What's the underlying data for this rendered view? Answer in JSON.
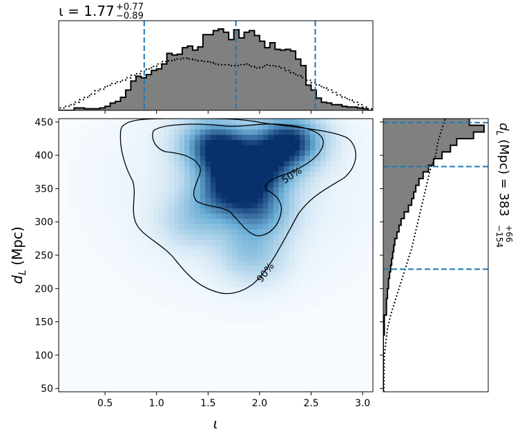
{
  "chart_data": [
    {
      "panel": "top-marginal",
      "type": "histogram-step",
      "title": "ι = 1.77 +0.77/−0.89",
      "title_main": "ι = 1.77",
      "title_up": "+0.77",
      "title_down": "−0.89",
      "xlim": [
        0.05,
        3.1
      ],
      "bin_edges_x": [
        0.05,
        3.1
      ],
      "posterior_heights": [
        0.0,
        0.0,
        0.0,
        0.03,
        0.03,
        0.02,
        0.02,
        0.02,
        0.03,
        0.05,
        0.09,
        0.11,
        0.16,
        0.25,
        0.36,
        0.42,
        0.4,
        0.44,
        0.49,
        0.51,
        0.57,
        0.7,
        0.68,
        0.69,
        0.77,
        0.79,
        0.74,
        0.78,
        0.93,
        0.93,
        0.98,
        1.0,
        0.96,
        0.87,
        0.99,
        0.89,
        0.96,
        0.98,
        0.92,
        0.85,
        0.77,
        0.83,
        0.75,
        0.74,
        0.75,
        0.73,
        0.63,
        0.55,
        0.31,
        0.25,
        0.15,
        0.1,
        0.09,
        0.07,
        0.07,
        0.05,
        0.04,
        0.04,
        0.03,
        0.02,
        0.0
      ],
      "prior_heights": [
        0.03,
        0.05,
        0.07,
        0.1,
        0.13,
        0.16,
        0.2,
        0.24,
        0.26,
        0.3,
        0.33,
        0.35,
        0.37,
        0.4,
        0.43,
        0.45,
        0.48,
        0.51,
        0.54,
        0.57,
        0.6,
        0.61,
        0.62,
        0.63,
        0.64,
        0.63,
        0.62,
        0.61,
        0.6,
        0.59,
        0.57,
        0.56,
        0.56,
        0.55,
        0.55,
        0.56,
        0.57,
        0.54,
        0.52,
        0.53,
        0.56,
        0.55,
        0.54,
        0.52,
        0.49,
        0.46,
        0.43,
        0.4,
        0.37,
        0.34,
        0.31,
        0.28,
        0.25,
        0.22,
        0.19,
        0.16,
        0.13,
        0.1,
        0.07,
        0.04,
        0.02
      ],
      "quantiles": [
        0.88,
        1.77,
        2.54
      ]
    },
    {
      "panel": "joint",
      "type": "heatmap",
      "xlabel": "ι",
      "ylabel": "dL (Mpc)",
      "ylabel_italic": "d",
      "ylabel_sub": "L",
      "ylabel_rest": " (Mpc)",
      "xlim": [
        0.05,
        3.1
      ],
      "ylim": [
        45,
        455
      ],
      "xticks": [
        "0.5",
        "1.0",
        "1.5",
        "2.0",
        "2.5",
        "3.0"
      ],
      "yticks": [
        "50",
        "100",
        "150",
        "200",
        "250",
        "300",
        "350",
        "400",
        "450"
      ],
      "contour_labels": [
        "50%",
        "90%"
      ],
      "density_peaks": [
        {
          "x": 2.28,
          "y": 421,
          "w": 1.0
        },
        {
          "x": 1.55,
          "y": 420,
          "w": 0.7
        },
        {
          "x": 1.72,
          "y": 392,
          "w": 0.7
        },
        {
          "x": 2.05,
          "y": 380,
          "w": 0.55
        },
        {
          "x": 1.85,
          "y": 355,
          "w": 0.5
        },
        {
          "x": 1.6,
          "y": 340,
          "w": 0.45
        },
        {
          "x": 2.0,
          "y": 315,
          "w": 0.5
        },
        {
          "x": 1.35,
          "y": 300,
          "w": 0.25
        },
        {
          "x": 1.9,
          "y": 265,
          "w": 0.25
        },
        {
          "x": 1.95,
          "y": 235,
          "w": 0.15
        }
      ]
    },
    {
      "panel": "right-marginal",
      "type": "histogram-step",
      "title": "dL (Mpc) = 383 +66/−154",
      "title_main": "(Mpc) = 383",
      "title_up": "+66",
      "title_down": "−154",
      "ylim": [
        45,
        455
      ],
      "quantiles": [
        229,
        383,
        449
      ],
      "posterior": [
        [
          45,
          0.0
        ],
        [
          130,
          0.01
        ],
        [
          160,
          0.03
        ],
        [
          185,
          0.04
        ],
        [
          200,
          0.05
        ],
        [
          215,
          0.06
        ],
        [
          225,
          0.07
        ],
        [
          235,
          0.08
        ],
        [
          245,
          0.09
        ],
        [
          255,
          0.1
        ],
        [
          265,
          0.11
        ],
        [
          275,
          0.13
        ],
        [
          285,
          0.15
        ],
        [
          295,
          0.17
        ],
        [
          305,
          0.2
        ],
        [
          315,
          0.24
        ],
        [
          325,
          0.27
        ],
        [
          335,
          0.29
        ],
        [
          345,
          0.31
        ],
        [
          355,
          0.34
        ],
        [
          365,
          0.38
        ],
        [
          375,
          0.43
        ],
        [
          385,
          0.48
        ],
        [
          395,
          0.56
        ],
        [
          405,
          0.64
        ],
        [
          415,
          0.7
        ],
        [
          425,
          0.86
        ],
        [
          435,
          0.96
        ],
        [
          445,
          0.82
        ],
        [
          455,
          0.82
        ]
      ],
      "prior": [
        [
          45,
          0.005
        ],
        [
          100,
          0.01
        ],
        [
          140,
          0.04
        ],
        [
          160,
          0.07
        ],
        [
          180,
          0.11
        ],
        [
          200,
          0.15
        ],
        [
          220,
          0.19
        ],
        [
          240,
          0.23
        ],
        [
          260,
          0.27
        ],
        [
          280,
          0.3
        ],
        [
          300,
          0.33
        ],
        [
          320,
          0.36
        ],
        [
          340,
          0.39
        ],
        [
          360,
          0.42
        ],
        [
          380,
          0.45
        ],
        [
          400,
          0.5
        ],
        [
          420,
          0.52
        ],
        [
          440,
          0.56
        ],
        [
          455,
          0.59
        ]
      ]
    }
  ],
  "colors": {
    "fill": "#808080",
    "quantile_line": "#1f77b4",
    "density_max": "#08306b",
    "density_min": "#f7fbff"
  }
}
